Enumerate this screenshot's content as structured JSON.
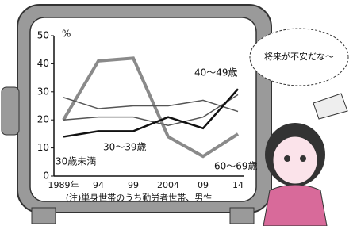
{
  "chart_data": {
    "type": "line",
    "y_unit": "%",
    "categories": [
      "1989年",
      "94",
      "99",
      "2004",
      "09",
      "14"
    ],
    "ylim": [
      0,
      50
    ],
    "yticks": [
      0,
      10,
      20,
      30,
      40,
      50
    ],
    "series": [
      {
        "name": "60～69歳",
        "color": "#8a8a8a",
        "values": [
          20,
          41,
          42,
          14,
          7,
          15
        ]
      },
      {
        "name": "40～49歳",
        "color": "#555555",
        "values": [
          28,
          24,
          25,
          25,
          27,
          23
        ]
      },
      {
        "name": "30～39歳",
        "color": "#555555",
        "values": [
          20,
          21,
          21,
          18,
          21,
          29
        ]
      },
      {
        "name": "30歳未満",
        "color": "#111111",
        "values": [
          14,
          16,
          16,
          21,
          17,
          31
        ]
      }
    ],
    "note": "(注)単身世帯のうち勤労者世帯、男性",
    "speech": "将来が不安だな～"
  }
}
